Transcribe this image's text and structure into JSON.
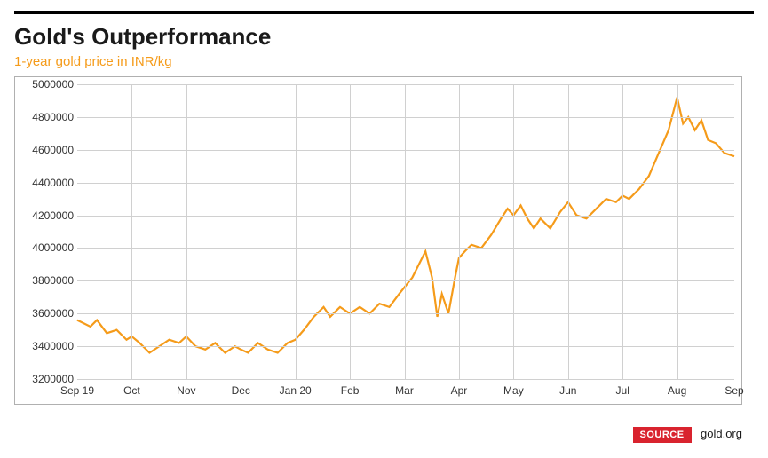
{
  "title": "Gold's Outperformance",
  "subtitle": "1-year gold price in INR/kg",
  "subtitle_color": "#f59b1a",
  "source_label": "SOURCE",
  "source_text": "gold.org",
  "chart": {
    "type": "line",
    "line_color": "#f59b1a",
    "line_width": 2.2,
    "background_color": "#ffffff",
    "grid_color": "#d0d0d0",
    "border_color": "#b0b0b0",
    "ylim": [
      3200000,
      5000000
    ],
    "ytick_step": 200000,
    "y_ticks": [
      3200000,
      3400000,
      3600000,
      3800000,
      4000000,
      4200000,
      4400000,
      4600000,
      4800000,
      5000000
    ],
    "x_labels": [
      "Sep 19",
      "Oct",
      "Nov",
      "Dec",
      "Jan 20",
      "Feb",
      "Mar",
      "Apr",
      "May",
      "Jun",
      "Jul",
      "Aug",
      "Sep"
    ],
    "x_positions": [
      0,
      0.083,
      0.166,
      0.249,
      0.332,
      0.415,
      0.498,
      0.581,
      0.664,
      0.747,
      0.83,
      0.913,
      1.0
    ],
    "label_fontsize": 12,
    "title_fontsize": 26,
    "subtitle_fontsize": 15,
    "series": [
      {
        "x": 0.0,
        "y": 3560000
      },
      {
        "x": 0.02,
        "y": 3520000
      },
      {
        "x": 0.03,
        "y": 3560000
      },
      {
        "x": 0.045,
        "y": 3480000
      },
      {
        "x": 0.06,
        "y": 3500000
      },
      {
        "x": 0.075,
        "y": 3440000
      },
      {
        "x": 0.083,
        "y": 3460000
      },
      {
        "x": 0.095,
        "y": 3420000
      },
      {
        "x": 0.11,
        "y": 3360000
      },
      {
        "x": 0.125,
        "y": 3400000
      },
      {
        "x": 0.14,
        "y": 3440000
      },
      {
        "x": 0.155,
        "y": 3420000
      },
      {
        "x": 0.166,
        "y": 3460000
      },
      {
        "x": 0.18,
        "y": 3400000
      },
      {
        "x": 0.195,
        "y": 3380000
      },
      {
        "x": 0.21,
        "y": 3420000
      },
      {
        "x": 0.225,
        "y": 3360000
      },
      {
        "x": 0.24,
        "y": 3400000
      },
      {
        "x": 0.249,
        "y": 3380000
      },
      {
        "x": 0.26,
        "y": 3360000
      },
      {
        "x": 0.275,
        "y": 3420000
      },
      {
        "x": 0.29,
        "y": 3380000
      },
      {
        "x": 0.305,
        "y": 3360000
      },
      {
        "x": 0.32,
        "y": 3420000
      },
      {
        "x": 0.332,
        "y": 3440000
      },
      {
        "x": 0.345,
        "y": 3500000
      },
      {
        "x": 0.36,
        "y": 3580000
      },
      {
        "x": 0.375,
        "y": 3640000
      },
      {
        "x": 0.385,
        "y": 3580000
      },
      {
        "x": 0.4,
        "y": 3640000
      },
      {
        "x": 0.415,
        "y": 3600000
      },
      {
        "x": 0.43,
        "y": 3640000
      },
      {
        "x": 0.445,
        "y": 3600000
      },
      {
        "x": 0.46,
        "y": 3660000
      },
      {
        "x": 0.475,
        "y": 3640000
      },
      {
        "x": 0.49,
        "y": 3720000
      },
      {
        "x": 0.498,
        "y": 3760000
      },
      {
        "x": 0.51,
        "y": 3820000
      },
      {
        "x": 0.52,
        "y": 3900000
      },
      {
        "x": 0.53,
        "y": 3980000
      },
      {
        "x": 0.54,
        "y": 3820000
      },
      {
        "x": 0.548,
        "y": 3580000
      },
      {
        "x": 0.555,
        "y": 3720000
      },
      {
        "x": 0.565,
        "y": 3600000
      },
      {
        "x": 0.575,
        "y": 3820000
      },
      {
        "x": 0.581,
        "y": 3940000
      },
      {
        "x": 0.59,
        "y": 3980000
      },
      {
        "x": 0.6,
        "y": 4020000
      },
      {
        "x": 0.615,
        "y": 4000000
      },
      {
        "x": 0.63,
        "y": 4080000
      },
      {
        "x": 0.645,
        "y": 4180000
      },
      {
        "x": 0.655,
        "y": 4240000
      },
      {
        "x": 0.664,
        "y": 4200000
      },
      {
        "x": 0.675,
        "y": 4260000
      },
      {
        "x": 0.685,
        "y": 4180000
      },
      {
        "x": 0.695,
        "y": 4120000
      },
      {
        "x": 0.705,
        "y": 4180000
      },
      {
        "x": 0.72,
        "y": 4120000
      },
      {
        "x": 0.735,
        "y": 4220000
      },
      {
        "x": 0.747,
        "y": 4280000
      },
      {
        "x": 0.76,
        "y": 4200000
      },
      {
        "x": 0.775,
        "y": 4180000
      },
      {
        "x": 0.79,
        "y": 4240000
      },
      {
        "x": 0.805,
        "y": 4300000
      },
      {
        "x": 0.82,
        "y": 4280000
      },
      {
        "x": 0.83,
        "y": 4320000
      },
      {
        "x": 0.84,
        "y": 4300000
      },
      {
        "x": 0.855,
        "y": 4360000
      },
      {
        "x": 0.87,
        "y": 4440000
      },
      {
        "x": 0.885,
        "y": 4580000
      },
      {
        "x": 0.9,
        "y": 4720000
      },
      {
        "x": 0.913,
        "y": 4920000
      },
      {
        "x": 0.922,
        "y": 4760000
      },
      {
        "x": 0.93,
        "y": 4800000
      },
      {
        "x": 0.94,
        "y": 4720000
      },
      {
        "x": 0.95,
        "y": 4780000
      },
      {
        "x": 0.96,
        "y": 4660000
      },
      {
        "x": 0.972,
        "y": 4640000
      },
      {
        "x": 0.985,
        "y": 4580000
      },
      {
        "x": 1.0,
        "y": 4560000
      }
    ]
  }
}
